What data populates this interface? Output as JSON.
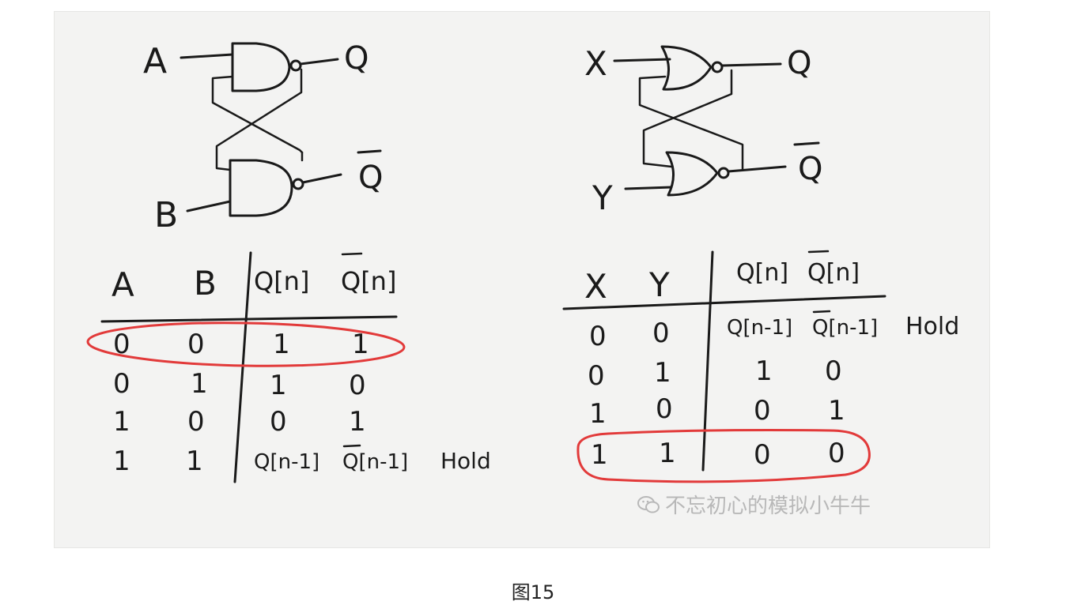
{
  "caption": "图15",
  "watermark": {
    "text": "不忘初心的模拟小牛牛"
  },
  "colors": {
    "ink": "#1a1a1a",
    "highlight": "#e23a3a",
    "paper": "#f3f3f2"
  },
  "left": {
    "inputs": {
      "top": "A",
      "bottom": "B"
    },
    "outputs": {
      "top": "Q",
      "bottom": "Q"
    },
    "gate": "nand",
    "table": {
      "headers": [
        "A",
        "B",
        "Q[n]",
        "Q[n]"
      ],
      "rows": [
        [
          "0",
          "0",
          "1",
          "1"
        ],
        [
          "0",
          "1",
          "1",
          "0"
        ],
        [
          "1",
          "0",
          "0",
          "1"
        ],
        [
          "1",
          "1",
          "Q[n-1]",
          "Q[n-1]"
        ]
      ],
      "note": "Hold",
      "highlight_row": 0
    }
  },
  "right": {
    "inputs": {
      "top": "X",
      "bottom": "Y"
    },
    "outputs": {
      "top": "Q",
      "bottom": "Q"
    },
    "gate": "nor",
    "table": {
      "headers": [
        "X",
        "Y",
        "Q[n]",
        "Q[n]"
      ],
      "rows": [
        [
          "0",
          "0",
          "Q[n-1]",
          "Q[n-1]"
        ],
        [
          "0",
          "1",
          "1",
          "0"
        ],
        [
          "1",
          "0",
          "0",
          "1"
        ],
        [
          "1",
          "1",
          "0",
          "0"
        ]
      ],
      "note": "Hold",
      "highlight_row": 3
    }
  }
}
